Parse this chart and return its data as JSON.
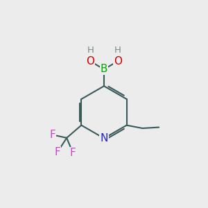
{
  "background_color": "#ececec",
  "atom_colors": {
    "C": "#000000",
    "H": "#7a8a8a",
    "B": "#00aa00",
    "N": "#2222cc",
    "O": "#cc0000",
    "F": "#cc44cc"
  },
  "bond_color": "#3a5a5a",
  "bond_width": 1.5,
  "font_size_atoms": 11,
  "font_size_small": 9.5
}
